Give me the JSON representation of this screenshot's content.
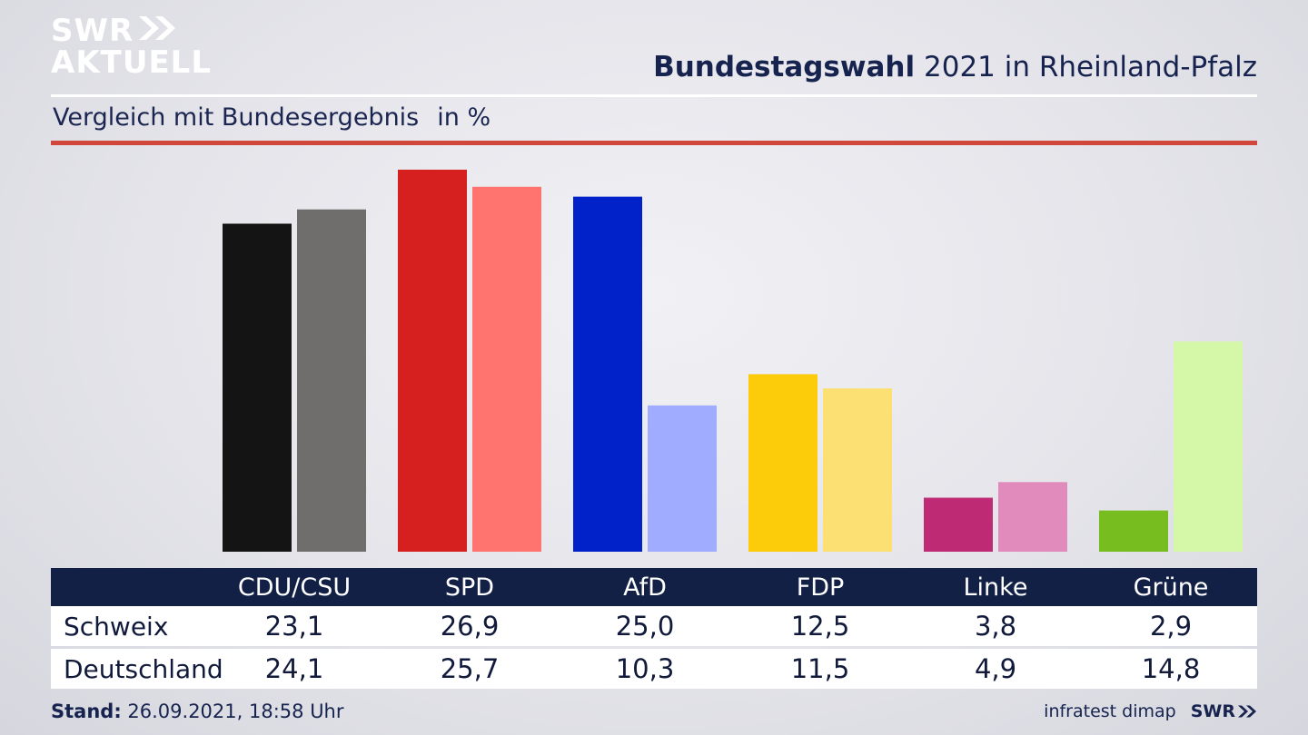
{
  "logo": {
    "line1": "SWR",
    "line2": "AKTUELL"
  },
  "header": {
    "title_bold": "Bundestagswahl",
    "title_rest": "2021 in Rheinland-Pfalz"
  },
  "subtitle": {
    "text": "Vergleich mit Bundesergebnis",
    "unit": "in %"
  },
  "chart_data": {
    "type": "bar",
    "categories": [
      "CDU/CSU",
      "SPD",
      "AfD",
      "FDP",
      "Linke",
      "Grüne"
    ],
    "series": [
      {
        "name": "Schweix",
        "values": [
          23.1,
          26.9,
          25.0,
          12.5,
          3.8,
          2.9
        ],
        "colors": [
          "#141414",
          "#d61f1f",
          "#0022c8",
          "#fccb0a",
          "#be2a73",
          "#78bd1f"
        ]
      },
      {
        "name": "Deutschland",
        "values": [
          24.1,
          25.7,
          10.3,
          11.5,
          4.9,
          14.8
        ],
        "colors": [
          "#6f6e6c",
          "#ff746e",
          "#a0acff",
          "#fde074",
          "#e08bbb",
          "#d4f7a8"
        ]
      }
    ],
    "ylim": [
      0,
      27.5
    ],
    "value_labels": {
      "Schweix": [
        "23,1",
        "26,9",
        "25,0",
        "12,5",
        "3,8",
        "2,9"
      ],
      "Deutschland": [
        "24,1",
        "25,7",
        "10,3",
        "11,5",
        "4,9",
        "14,8"
      ]
    },
    "grid": false
  },
  "footer": {
    "stand_label": "Stand:",
    "stand_value": "26.09.2021, 18:58 Uhr",
    "source": "infratest dimap",
    "brand": "SWR"
  },
  "colors": {
    "table_header": "#132046",
    "accent_rule": "#d2473c",
    "title": "#16234e"
  }
}
